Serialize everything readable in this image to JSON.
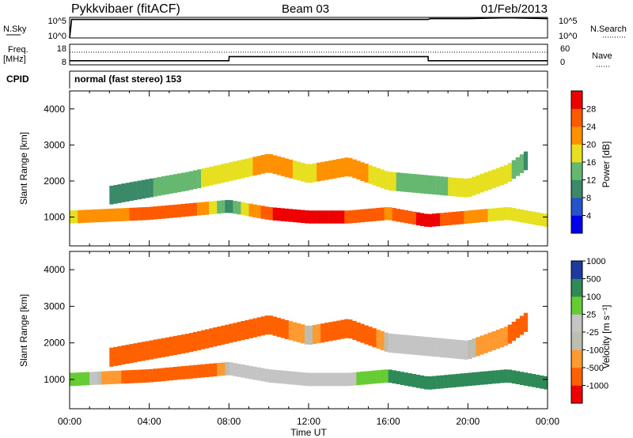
{
  "header": {
    "station": "Pykkvibaer (fitACF)",
    "beam": "Beam 03",
    "date": "01/Feb/2013"
  },
  "colors": {
    "power": [
      "#0000ee",
      "#2454c8",
      "#3a8a6a",
      "#66b870",
      "#e6e020",
      "#ff9000",
      "#ff5a00",
      "#ee0000"
    ],
    "velocity": [
      "#ee0000",
      "#ff6000",
      "#ff9a30",
      "#bdbdb0",
      "#c4c4c4",
      "#66cc33",
      "#2e8b57",
      "#1c3aa0"
    ],
    "noise_line": "#000000"
  },
  "panels": {
    "noise": {
      "left_label": "N.Sky",
      "left_ticks": [
        "10^5",
        "10^0"
      ],
      "right_label": "N.Search",
      "right_ticks": [
        "10^5",
        "10^0"
      ]
    },
    "freq": {
      "left_label_1": "Freq.",
      "left_label_2": "[MHz]",
      "left_ticks": [
        "18",
        "8"
      ],
      "right_label": "Nave",
      "right_ticks": [
        "60",
        "0"
      ]
    },
    "cpid": {
      "label": "CPID",
      "text": "normal (fast stereo) 153"
    }
  },
  "x_axis": {
    "title": "Time UT",
    "ticks": [
      "00:00",
      "04:00",
      "08:00",
      "12:00",
      "16:00",
      "20:00",
      "00:00"
    ]
  },
  "power_panel": {
    "ylabel": "Slant Range [km]",
    "yticks": [
      "1000",
      "2000",
      "3000",
      "4000"
    ],
    "cbar_label": "Power [dB]",
    "cbar_ticks": [
      "4",
      "8",
      "12",
      "16",
      "20",
      "24",
      "28"
    ]
  },
  "velocity_panel": {
    "ylabel": "Slant Range [km]",
    "yticks": [
      "1000",
      "2000",
      "3000",
      "4000"
    ],
    "cbar_label": "Velocity [m s⁻¹]",
    "cbar_ticks": [
      "-1000",
      "-500",
      "-100",
      "-25",
      "25",
      "100",
      "500",
      "1000"
    ]
  },
  "chart_data": [
    {
      "type": "line",
      "title": "Pykkvibaer (fitACF) Beam 03 01/Feb/2013",
      "xlabel": "Time UT",
      "x_range_hours": [
        0,
        24
      ],
      "series": [
        {
          "name": "N.Sky",
          "x": [
            0,
            0.1,
            0.2,
            3,
            6,
            10,
            14,
            18,
            18.1,
            20,
            22,
            24
          ],
          "y_log10": [
            0,
            4.5,
            4.5,
            4.5,
            4.5,
            4.5,
            4.5,
            4.5,
            4.7,
            4.7,
            4.9,
            4.7
          ]
        }
      ]
    },
    {
      "type": "line",
      "title": "Freq. [MHz] / Nave",
      "xlabel": "Time UT",
      "ylim": [
        8,
        18
      ],
      "series": [
        {
          "name": "Freq. [MHz]",
          "x": [
            0,
            8,
            8.01,
            18,
            18.01,
            24
          ],
          "y": [
            10,
            10,
            12,
            12,
            10,
            10
          ]
        }
      ]
    },
    {
      "type": "heatmap",
      "title": "Power [dB]",
      "xlabel": "Time UT",
      "ylabel": "Slant Range [km]",
      "xlim": [
        0,
        24
      ],
      "ylim": [
        200,
        4500
      ],
      "zlim": [
        0,
        30
      ],
      "features": [
        {
          "label": "near-range band",
          "x": [
            0,
            4,
            6,
            8,
            10,
            12,
            14,
            16,
            18,
            20,
            22,
            24
          ],
          "range_km": [
            1000,
            1100,
            1200,
            1300,
            1100,
            1000,
            1000,
            1100,
            900,
            1000,
            1100,
            900
          ],
          "power_db": [
            18,
            24,
            26,
            10,
            26,
            28,
            26,
            22,
            28,
            22,
            16,
            18
          ]
        },
        {
          "label": "far-range band",
          "x": [
            2,
            6,
            10,
            12,
            14,
            16,
            18,
            20,
            22,
            23
          ],
          "range_km": [
            1600,
            2000,
            2500,
            2200,
            2400,
            2000,
            1900,
            1800,
            2200,
            2600
          ],
          "power_db": [
            8,
            14,
            20,
            18,
            22,
            16,
            12,
            18,
            16,
            10
          ]
        }
      ]
    },
    {
      "type": "heatmap",
      "title": "Velocity [m s⁻¹]",
      "xlabel": "Time UT",
      "ylabel": "Slant Range [km]",
      "xlim": [
        0,
        24
      ],
      "ylim": [
        200,
        4500
      ],
      "zlim": [
        -1000,
        1000
      ],
      "features": [
        {
          "label": "near-range band",
          "x": [
            0,
            4,
            6,
            8,
            10,
            12,
            14,
            16,
            18,
            20,
            22,
            24
          ],
          "range_km": [
            1000,
            1100,
            1200,
            1300,
            1100,
            1000,
            1000,
            1100,
            900,
            1000,
            1100,
            900
          ],
          "velocity_ms": [
            100,
            -200,
            -300,
            0,
            0,
            0,
            0,
            100,
            200,
            300,
            400,
            100
          ]
        },
        {
          "label": "far-range band",
          "x": [
            2,
            6,
            10,
            12,
            14,
            16,
            18,
            20,
            22,
            23
          ],
          "range_km": [
            1600,
            2000,
            2500,
            2200,
            2400,
            2000,
            1900,
            1800,
            2200,
            2600
          ],
          "velocity_ms": [
            -100,
            -300,
            -200,
            0,
            -300,
            0,
            0,
            0,
            -100,
            -300
          ]
        }
      ]
    }
  ]
}
